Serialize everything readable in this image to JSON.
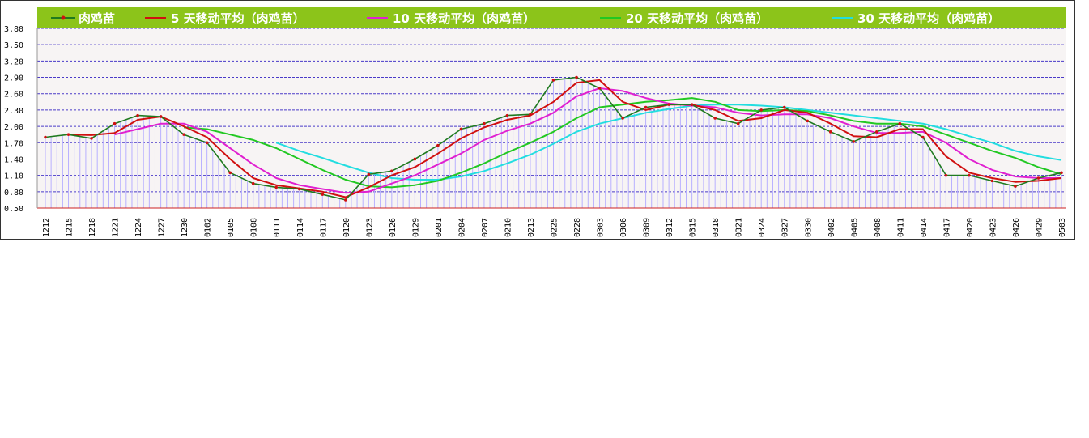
{
  "chart_data": {
    "type": "line",
    "title": "",
    "xlabel": "",
    "ylabel": "",
    "ylim": [
      0.5,
      3.8
    ],
    "yticks": [
      "3.80",
      "3.50",
      "3.20",
      "2.90",
      "2.60",
      "2.30",
      "2.00",
      "1.70",
      "1.40",
      "1.10",
      "0.80",
      "0.50"
    ],
    "grid": true,
    "legend_position": "top",
    "categories": [
      "1212",
      "1215",
      "1218",
      "1221",
      "1224",
      "1227",
      "1230",
      "0102",
      "0105",
      "0108",
      "0111",
      "0114",
      "0117",
      "0120",
      "0123",
      "0126",
      "0129",
      "0201",
      "0204",
      "0207",
      "0210",
      "0213",
      "0225",
      "0228",
      "0303",
      "0306",
      "0309",
      "0312",
      "0315",
      "0318",
      "0321",
      "0324",
      "0327",
      "0330",
      "0402",
      "0405",
      "0408",
      "0411",
      "0414",
      "0417",
      "0420",
      "0423",
      "0426",
      "0429",
      "0503"
    ],
    "series": [
      {
        "name": "肉鸡苗",
        "color": "#1f7a1f",
        "values": [
          1.8,
          1.85,
          1.78,
          2.05,
          2.2,
          2.18,
          1.85,
          1.7,
          1.15,
          0.95,
          0.88,
          0.85,
          0.75,
          0.65,
          1.12,
          1.18,
          1.4,
          1.65,
          1.95,
          2.05,
          2.2,
          2.22,
          2.85,
          2.9,
          2.7,
          2.15,
          2.35,
          2.4,
          2.4,
          2.15,
          2.05,
          2.3,
          2.35,
          2.1,
          1.9,
          1.72,
          1.9,
          2.05,
          1.8,
          1.1,
          1.1,
          1.0,
          0.9,
          1.05,
          1.15
        ]
      },
      {
        "name": "5 天移动平均（肉鸡苗）",
        "color": "#d01010",
        "values": [
          null,
          1.85,
          1.84,
          1.88,
          2.12,
          2.18,
          2.0,
          1.8,
          1.4,
          1.05,
          0.92,
          0.86,
          0.8,
          0.7,
          0.88,
          1.1,
          1.25,
          1.5,
          1.78,
          1.98,
          2.12,
          2.2,
          2.45,
          2.8,
          2.85,
          2.45,
          2.3,
          2.4,
          2.4,
          2.3,
          2.1,
          2.15,
          2.3,
          2.25,
          2.05,
          1.82,
          1.8,
          1.95,
          1.95,
          1.45,
          1.15,
          1.05,
          0.98,
          1.0,
          1.05
        ]
      },
      {
        "name": "10 天移动平均（肉鸡苗）",
        "color": "#e020d0",
        "values": [
          null,
          null,
          null,
          1.85,
          1.95,
          2.05,
          2.05,
          1.9,
          1.6,
          1.3,
          1.05,
          0.92,
          0.85,
          0.78,
          0.8,
          0.95,
          1.1,
          1.3,
          1.5,
          1.75,
          1.92,
          2.05,
          2.25,
          2.55,
          2.7,
          2.65,
          2.52,
          2.42,
          2.38,
          2.35,
          2.25,
          2.2,
          2.22,
          2.22,
          2.15,
          2.0,
          1.88,
          1.88,
          1.9,
          1.7,
          1.4,
          1.2,
          1.08,
          1.05,
          1.05
        ]
      },
      {
        "name": "20 天移动平均（肉鸡苗）",
        "color": "#22c822",
        "values": [
          null,
          null,
          null,
          null,
          null,
          null,
          1.98,
          1.95,
          1.85,
          1.75,
          1.6,
          1.4,
          1.2,
          1.02,
          0.9,
          0.88,
          0.92,
          1.0,
          1.15,
          1.32,
          1.52,
          1.7,
          1.9,
          2.15,
          2.35,
          2.4,
          2.45,
          2.48,
          2.52,
          2.45,
          2.3,
          2.28,
          2.3,
          2.28,
          2.2,
          2.1,
          2.05,
          2.05,
          2.0,
          1.85,
          1.7,
          1.55,
          1.42,
          1.25,
          1.12
        ]
      },
      {
        "name": "30 天移动平均（肉鸡苗）",
        "color": "#22dde0",
        "values": [
          null,
          null,
          null,
          null,
          null,
          null,
          null,
          null,
          null,
          null,
          1.7,
          1.55,
          1.42,
          1.28,
          1.15,
          1.05,
          1.02,
          1.02,
          1.08,
          1.18,
          1.32,
          1.48,
          1.68,
          1.9,
          2.05,
          2.15,
          2.25,
          2.32,
          2.38,
          2.4,
          2.4,
          2.38,
          2.35,
          2.3,
          2.25,
          2.2,
          2.15,
          2.1,
          2.05,
          1.95,
          1.82,
          1.7,
          1.55,
          1.45,
          1.38
        ]
      }
    ]
  },
  "legend": {
    "item1": "肉鸡苗",
    "item2": "5 天移动平均（肉鸡苗）",
    "item3": "10 天移动平均（肉鸡苗）",
    "item4": "20 天移动平均（肉鸡苗）",
    "item5": "30 天移动平均（肉鸡苗）"
  },
  "colors": {
    "legend_band": "#8cc41a",
    "plot_background": "#f7f4f4",
    "gridline": "#4a3ac8",
    "columns": "#b8b0ff",
    "axis": "#cc2222"
  }
}
